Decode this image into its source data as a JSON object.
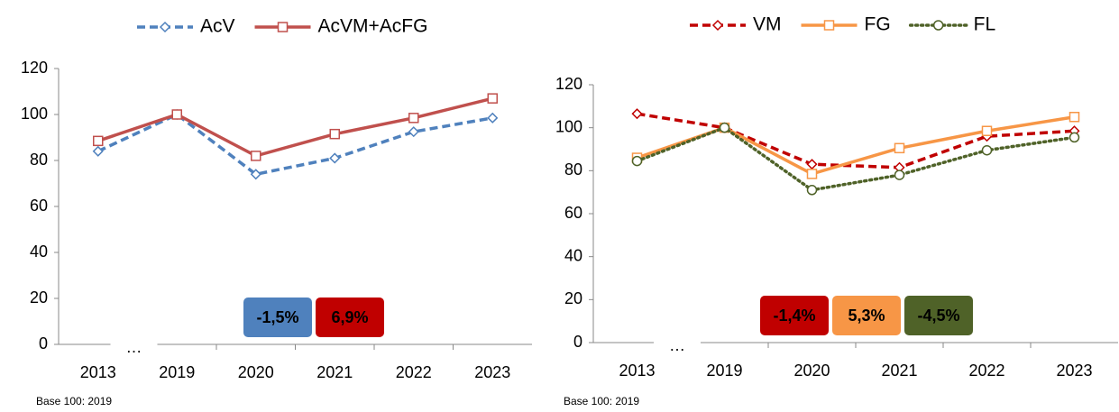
{
  "chart_data": [
    {
      "type": "line",
      "categories": [
        "2013",
        "2019",
        "2020",
        "2021",
        "2022",
        "2023"
      ],
      "axis_break": "…",
      "series": [
        {
          "name": "AcV",
          "color": "#4f81bd",
          "dash": "dashed",
          "marker": "diamond",
          "values": [
            84,
            100,
            74,
            81,
            92.5,
            98.5
          ]
        },
        {
          "name": "AcVM+AcFG",
          "color": "#c0504d",
          "dash": "solid",
          "marker": "square",
          "values": [
            88.5,
            100,
            82,
            91.5,
            98.5,
            107
          ]
        }
      ],
      "ylim": [
        0,
        120
      ],
      "yticks": [
        0,
        20,
        40,
        60,
        80,
        100,
        120
      ],
      "annotations": [
        {
          "text": "-1,5%",
          "color": "#4f81bd"
        },
        {
          "text": "6,9%",
          "color": "#c00000"
        }
      ],
      "note": "Base 100: 2019"
    },
    {
      "type": "line",
      "categories": [
        "2013",
        "2019",
        "2020",
        "2021",
        "2022",
        "2023"
      ],
      "axis_break": "…",
      "series": [
        {
          "name": "VM",
          "color": "#c00000",
          "dash": "dashed",
          "marker": "diamond",
          "values": [
            106.5,
            100,
            83,
            81.5,
            96,
            98.5
          ]
        },
        {
          "name": "FG",
          "color": "#f79646",
          "dash": "solid",
          "marker": "square",
          "values": [
            86,
            100,
            78.5,
            90.5,
            98.5,
            105
          ]
        },
        {
          "name": "FL",
          "color": "#4f6228",
          "dash": "dotted",
          "marker": "circle",
          "values": [
            84.5,
            100,
            71,
            78,
            89.5,
            95.5
          ]
        }
      ],
      "ylim": [
        0,
        120
      ],
      "yticks": [
        0,
        20,
        40,
        60,
        80,
        100,
        120
      ],
      "annotations": [
        {
          "text": "-1,4%",
          "color": "#c00000"
        },
        {
          "text": "5,3%",
          "color": "#f79646"
        },
        {
          "text": "-4,5%",
          "color": "#4f6228"
        }
      ],
      "note": "Base 100: 2019"
    }
  ]
}
